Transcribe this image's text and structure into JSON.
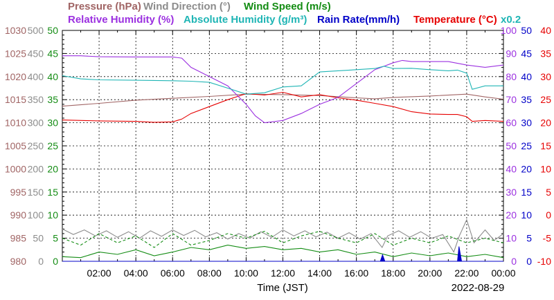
{
  "chart_data": {
    "type": "line",
    "legend_rows": [
      [
        {
          "id": "pressure",
          "label": "Pressure (hPa)",
          "color": "#a06464"
        },
        {
          "id": "wind_dir",
          "label": "Wind Direction (°)",
          "color": "#8c8c8c"
        },
        {
          "id": "wind_speed",
          "label": "Wind Speed (m/s)",
          "color": "#138c13"
        }
      ],
      [
        {
          "id": "humidity",
          "label": "Relative Humidity (%)",
          "color": "#9b30e0"
        },
        {
          "id": "abs_humidity",
          "label": "Absolute Humidity (g/m³)",
          "color": "#1fb5b5"
        },
        {
          "id": "rain",
          "label": "Rain Rate(mm/h)",
          "color": "#0000c8"
        },
        {
          "id": "temperature",
          "label": "Temperature (°C)",
          "color": "#e60000"
        },
        {
          "id": "x_note",
          "label": "x0.2",
          "color": "#1fb5b5"
        }
      ]
    ],
    "xlabel": "Time (JST)",
    "date_label": "2022-08-29",
    "x_range_hours": [
      0,
      24
    ],
    "x_ticks": [
      "02:00",
      "04:00",
      "06:00",
      "08:00",
      "10:00",
      "12:00",
      "14:00",
      "16:00",
      "18:00",
      "20:00",
      "22:00",
      "00:00"
    ],
    "axes": {
      "pressure": {
        "color": "#a06464",
        "range": [
          980,
          1030
        ],
        "ticks": [
          "980",
          "985",
          "990",
          "995",
          "1000",
          "1005",
          "1010",
          "1015",
          "1020",
          "1025",
          "1030"
        ]
      },
      "wind_dir": {
        "color": "#8c8c8c",
        "range": [
          0,
          500
        ],
        "ticks": [
          "0",
          "50",
          "100",
          "150",
          "200",
          "250",
          "300",
          "350",
          "400",
          "450",
          "500"
        ]
      },
      "wind_speed": {
        "color": "#138c13",
        "range": [
          0,
          50
        ],
        "ticks": [
          "0",
          "5",
          "10",
          "15",
          "20",
          "25",
          "30",
          "35",
          "40",
          "45",
          "50"
        ]
      },
      "humidity": {
        "color": "#9b30e0",
        "range": [
          0,
          100
        ],
        "ticks": [
          "0",
          "10",
          "20",
          "30",
          "40",
          "50",
          "60",
          "70",
          "80",
          "90",
          "100"
        ]
      },
      "rain": {
        "color": "#0000c8",
        "range": [
          0,
          50
        ],
        "ticks": [
          "0",
          "5",
          "10",
          "15",
          "20",
          "25",
          "30",
          "35",
          "40",
          "45",
          "50"
        ]
      },
      "temperature": {
        "color": "#e60000",
        "range": [
          -10,
          40
        ],
        "ticks": [
          "-10",
          "-5",
          "0",
          "5",
          "10",
          "15",
          "20",
          "25",
          "30",
          "35",
          "40"
        ]
      }
    },
    "grid": true,
    "series": [
      {
        "id": "pressure",
        "axis": "pressure",
        "color": "#a06464",
        "points": [
          [
            0,
            1013.6
          ],
          [
            2,
            1014.2
          ],
          [
            4,
            1014.9
          ],
          [
            6,
            1015.3
          ],
          [
            8,
            1015.7
          ],
          [
            10,
            1016.2
          ],
          [
            12,
            1016.1
          ],
          [
            14,
            1015.9
          ],
          [
            16,
            1015.4
          ],
          [
            17,
            1015.2
          ],
          [
            18,
            1015.5
          ],
          [
            20,
            1015.8
          ],
          [
            22,
            1016.2
          ],
          [
            23,
            1015.6
          ],
          [
            24,
            1015.1
          ]
        ]
      },
      {
        "id": "temperature",
        "axis": "temperature",
        "color": "#e60000",
        "points": [
          [
            0,
            20.6
          ],
          [
            2,
            20.4
          ],
          [
            4,
            20.3
          ],
          [
            5,
            20.1
          ],
          [
            6,
            20.2
          ],
          [
            6.5,
            20.8
          ],
          [
            7,
            22
          ],
          [
            8,
            23.5
          ],
          [
            9,
            25
          ],
          [
            10,
            26.3
          ],
          [
            11,
            26.0
          ],
          [
            12,
            26.6
          ],
          [
            13,
            25.6
          ],
          [
            14,
            26.1
          ],
          [
            15,
            25.4
          ],
          [
            16,
            24.9
          ],
          [
            17,
            24.2
          ],
          [
            18,
            23.5
          ],
          [
            19,
            22.4
          ],
          [
            20,
            21.9
          ],
          [
            21,
            21.8
          ],
          [
            21.5,
            21.8
          ],
          [
            22,
            21.3
          ],
          [
            22.3,
            20.3
          ],
          [
            23,
            20.5
          ],
          [
            24,
            20.3
          ]
        ]
      },
      {
        "id": "humidity",
        "axis": "humidity",
        "color": "#9b30e0",
        "points": [
          [
            0,
            89
          ],
          [
            1,
            89
          ],
          [
            2,
            88.6
          ],
          [
            4,
            88.5
          ],
          [
            6,
            88.5
          ],
          [
            6.5,
            88
          ],
          [
            7,
            84
          ],
          [
            8,
            80
          ],
          [
            9,
            76
          ],
          [
            10,
            68
          ],
          [
            10.5,
            63
          ],
          [
            11,
            60
          ],
          [
            12,
            61
          ],
          [
            13,
            64
          ],
          [
            14,
            68
          ],
          [
            15,
            71
          ],
          [
            16,
            77
          ],
          [
            17,
            83
          ],
          [
            18,
            86
          ],
          [
            18.5,
            87
          ],
          [
            19,
            86.5
          ],
          [
            20,
            86.5
          ],
          [
            21,
            86.5
          ],
          [
            22,
            85
          ],
          [
            23,
            84
          ],
          [
            24,
            85
          ]
        ]
      },
      {
        "id": "abs_humidity",
        "axis": "humidity",
        "color": "#1fb5b5",
        "points": [
          [
            0,
            80.4
          ],
          [
            1,
            79
          ],
          [
            2,
            78.6
          ],
          [
            4,
            78.4
          ],
          [
            6,
            78.2
          ],
          [
            7,
            78
          ],
          [
            8,
            77.5
          ],
          [
            9,
            75
          ],
          [
            10,
            72.4
          ],
          [
            11,
            73
          ],
          [
            12,
            75.5
          ],
          [
            13,
            76
          ],
          [
            14,
            82
          ],
          [
            15,
            82.5
          ],
          [
            16,
            83
          ],
          [
            17,
            83.5
          ],
          [
            17.5,
            84.5
          ],
          [
            18,
            83.5
          ],
          [
            19,
            83.6
          ],
          [
            20,
            83
          ],
          [
            21,
            82.5
          ],
          [
            21.5,
            82.8
          ],
          [
            22,
            81.5
          ],
          [
            22.3,
            74.5
          ],
          [
            23,
            76
          ],
          [
            24,
            76
          ]
        ]
      },
      {
        "id": "wind_dir",
        "axis": "wind_dir",
        "color": "#8c8c8c",
        "points": [
          [
            0,
            70
          ],
          [
            0.6,
            58
          ],
          [
            1.2,
            68
          ],
          [
            1.8,
            55
          ],
          [
            2.4,
            66
          ],
          [
            3,
            52
          ],
          [
            3.6,
            64
          ],
          [
            4.2,
            50
          ],
          [
            4.8,
            66
          ],
          [
            5.4,
            54
          ],
          [
            6,
            68
          ],
          [
            6.6,
            56
          ],
          [
            7.2,
            67
          ],
          [
            7.8,
            53
          ],
          [
            8.4,
            62
          ],
          [
            9,
            48
          ],
          [
            9.6,
            60
          ],
          [
            10.2,
            50
          ],
          [
            10.8,
            64
          ],
          [
            11.4,
            52
          ],
          [
            12,
            68
          ],
          [
            12.6,
            55
          ],
          [
            13.2,
            66
          ],
          [
            13.8,
            53
          ],
          [
            14.4,
            63
          ],
          [
            15,
            50
          ],
          [
            15.6,
            62
          ],
          [
            16.2,
            48
          ],
          [
            16.8,
            60
          ],
          [
            17.4,
            30
          ],
          [
            17.7,
            55
          ],
          [
            18.3,
            66
          ],
          [
            18.9,
            52
          ],
          [
            19.5,
            64
          ],
          [
            20.1,
            50
          ],
          [
            20.7,
            58
          ],
          [
            21.3,
            20
          ],
          [
            21.6,
            55
          ],
          [
            22,
            90
          ],
          [
            22.4,
            40
          ],
          [
            23,
            68
          ],
          [
            23.5,
            45
          ],
          [
            24,
            60
          ]
        ]
      },
      {
        "id": "wind_speed_max",
        "axis": "wind_speed",
        "color": "#138c13",
        "dash": "4,3",
        "points": [
          [
            0,
            5
          ],
          [
            1,
            3.5
          ],
          [
            2,
            6
          ],
          [
            3,
            4
          ],
          [
            4,
            5.5
          ],
          [
            5,
            3
          ],
          [
            6,
            6
          ],
          [
            7,
            3.5
          ],
          [
            8,
            4.5
          ],
          [
            9,
            6
          ],
          [
            10,
            5
          ],
          [
            11,
            6.5
          ],
          [
            12,
            4
          ],
          [
            13,
            5.5
          ],
          [
            14,
            6.5
          ],
          [
            15,
            5
          ],
          [
            16,
            4
          ],
          [
            17,
            6
          ],
          [
            18,
            3.5
          ],
          [
            19,
            5
          ],
          [
            20,
            4
          ],
          [
            21,
            5.5
          ],
          [
            22,
            4
          ],
          [
            23,
            5
          ],
          [
            24,
            4
          ]
        ]
      },
      {
        "id": "wind_speed_avg",
        "axis": "wind_speed",
        "color": "#138c13",
        "points": [
          [
            0,
            1
          ],
          [
            1,
            0.8
          ],
          [
            2,
            2
          ],
          [
            3,
            1.5
          ],
          [
            4,
            2.5
          ],
          [
            5,
            1.2
          ],
          [
            6,
            2
          ],
          [
            7,
            3
          ],
          [
            8,
            2.5
          ],
          [
            9,
            3.5
          ],
          [
            10,
            2.8
          ],
          [
            11,
            3.2
          ],
          [
            12,
            2.5
          ],
          [
            13,
            2.8
          ],
          [
            14,
            2
          ],
          [
            15,
            2.5
          ],
          [
            16,
            1.5
          ],
          [
            17,
            2
          ],
          [
            18,
            1
          ],
          [
            19,
            1.8
          ],
          [
            20,
            1.2
          ],
          [
            21,
            1.8
          ],
          [
            22,
            1
          ],
          [
            23,
            1.5
          ],
          [
            24,
            0.8
          ]
        ]
      },
      {
        "id": "rain",
        "axis": "rain",
        "color": "#0000c8",
        "fill": true,
        "points": [
          [
            0,
            0
          ],
          [
            17.3,
            0
          ],
          [
            17.42,
            1.4
          ],
          [
            17.55,
            0
          ],
          [
            21.5,
            0
          ],
          [
            21.58,
            3.2
          ],
          [
            21.72,
            0
          ],
          [
            24,
            0
          ]
        ]
      }
    ]
  }
}
